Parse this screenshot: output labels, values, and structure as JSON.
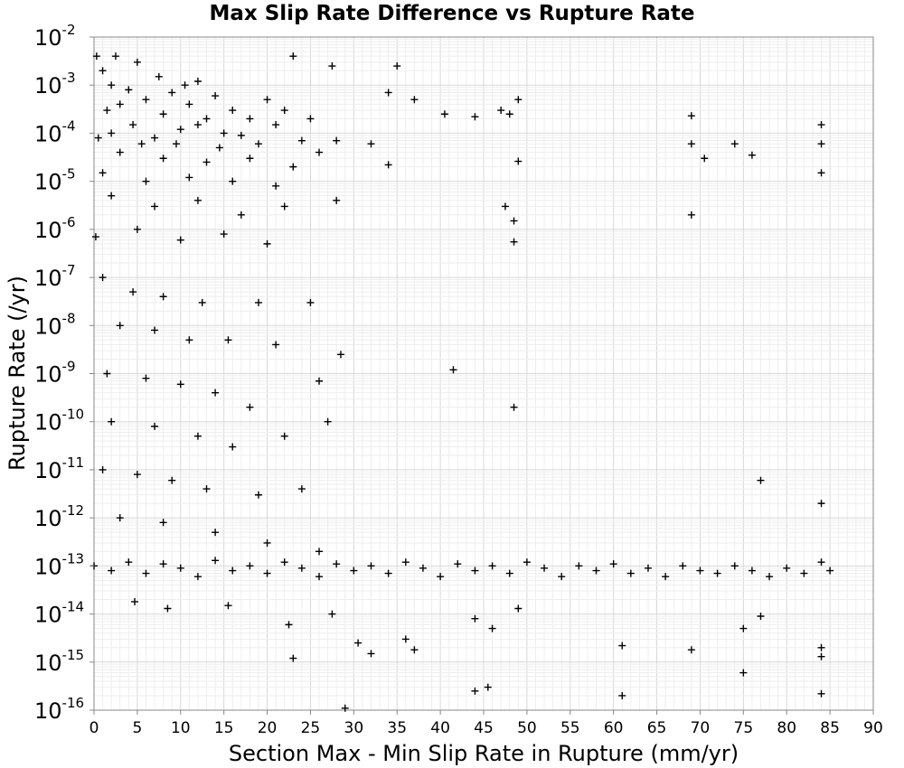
{
  "chart_data": {
    "type": "scatter",
    "title": "Max Slip Rate Difference vs Rupture Rate",
    "xlabel": "Section Max - Min Slip Rate in Rupture (mm/yr)",
    "ylabel": "Rupture Rate (/yr)",
    "x_scale": "linear",
    "y_scale": "log",
    "xlim": [
      0,
      90
    ],
    "ylim": [
      1e-16,
      0.01
    ],
    "x_ticks": [
      "0",
      "5",
      "10",
      "15",
      "20",
      "25",
      "30",
      "35",
      "40",
      "45",
      "50",
      "55",
      "60",
      "65",
      "70",
      "75",
      "80",
      "85",
      "90"
    ],
    "y_tick_bases": [
      "10",
      "10",
      "10",
      "10",
      "10",
      "10",
      "10",
      "10",
      "10",
      "10",
      "10",
      "10",
      "10",
      "10",
      "10"
    ],
    "y_tick_exponents": [
      "-16",
      "-15",
      "-14",
      "-13",
      "-12",
      "-11",
      "-10",
      "-9",
      "-8",
      "-7",
      "-6",
      "-5",
      "-4",
      "-3",
      "-2"
    ],
    "grid": true,
    "marker": "+",
    "marker_color": "#000000",
    "series": [
      {
        "points": [
          [
            0.3,
            0.004
          ],
          [
            2.5,
            0.004
          ],
          [
            5,
            0.003
          ],
          [
            23,
            0.004
          ],
          [
            27.5,
            0.0025
          ],
          [
            35,
            0.0025
          ],
          [
            1,
            0.002
          ],
          [
            7.5,
            0.0015
          ],
          [
            10.5,
            0.001
          ],
          [
            12,
            0.0012
          ],
          [
            2,
            0.001
          ],
          [
            4,
            0.0008
          ],
          [
            9,
            0.0007
          ],
          [
            14,
            0.0006
          ],
          [
            20,
            0.0005
          ],
          [
            34,
            0.0007
          ],
          [
            37,
            0.0005
          ],
          [
            49,
            0.0005
          ],
          [
            3,
            0.0004
          ],
          [
            6,
            0.0005
          ],
          [
            11,
            0.0004
          ],
          [
            16,
            0.0003
          ],
          [
            22,
            0.0003
          ],
          [
            1.5,
            0.0003
          ],
          [
            8,
            0.00025
          ],
          [
            13,
            0.0002
          ],
          [
            18,
            0.0002
          ],
          [
            25,
            0.0002
          ],
          [
            48,
            0.00025
          ],
          [
            44,
            0.00022
          ],
          [
            40.5,
            0.00025
          ],
          [
            47,
            0.0003
          ],
          [
            69,
            0.00023
          ],
          [
            4.5,
            0.00015
          ],
          [
            10,
            0.00012
          ],
          [
            15,
            0.0001
          ],
          [
            21,
            0.00015
          ],
          [
            2,
            0.0001
          ],
          [
            7,
            8e-05
          ],
          [
            12,
            0.00015
          ],
          [
            17,
            9e-05
          ],
          [
            24,
            7e-05
          ],
          [
            28,
            7e-05
          ],
          [
            32,
            6e-05
          ],
          [
            84,
            0.00015
          ],
          [
            0.5,
            8e-05
          ],
          [
            5.5,
            6e-05
          ],
          [
            9.5,
            6e-05
          ],
          [
            14.5,
            5e-05
          ],
          [
            19,
            6e-05
          ],
          [
            26,
            4e-05
          ],
          [
            84,
            6e-05
          ],
          [
            69,
            6e-05
          ],
          [
            74,
            6e-05
          ],
          [
            76,
            3.5e-05
          ],
          [
            70.5,
            3e-05
          ],
          [
            49,
            2.6e-05
          ],
          [
            3,
            4e-05
          ],
          [
            8,
            3e-05
          ],
          [
            13,
            2.5e-05
          ],
          [
            18,
            3e-05
          ],
          [
            23,
            2e-05
          ],
          [
            34,
            2.2e-05
          ],
          [
            84,
            1.5e-05
          ],
          [
            1,
            1.5e-05
          ],
          [
            6,
            1e-05
          ],
          [
            11,
            1.2e-05
          ],
          [
            16,
            1e-05
          ],
          [
            21,
            8e-06
          ],
          [
            2,
            5e-06
          ],
          [
            7,
            3e-06
          ],
          [
            12,
            4e-06
          ],
          [
            17,
            2e-06
          ],
          [
            22,
            3e-06
          ],
          [
            28,
            4e-06
          ],
          [
            47.5,
            3e-06
          ],
          [
            48.5,
            1.5e-06
          ],
          [
            69,
            2e-06
          ],
          [
            0.2,
            7e-07
          ],
          [
            5,
            1e-06
          ],
          [
            10,
            6e-07
          ],
          [
            15,
            8e-07
          ],
          [
            20,
            5e-07
          ],
          [
            48.5,
            5.5e-07
          ],
          [
            1,
            1e-07
          ],
          [
            4.5,
            5e-08
          ],
          [
            8,
            4e-08
          ],
          [
            12.5,
            3e-08
          ],
          [
            19,
            3e-08
          ],
          [
            25,
            3e-08
          ],
          [
            3,
            1e-08
          ],
          [
            7,
            8e-09
          ],
          [
            11,
            5e-09
          ],
          [
            15.5,
            5e-09
          ],
          [
            21,
            4e-09
          ],
          [
            28.5,
            2.5e-09
          ],
          [
            1.5,
            1e-09
          ],
          [
            6,
            8e-10
          ],
          [
            10,
            6e-10
          ],
          [
            14,
            4e-10
          ],
          [
            18,
            2e-10
          ],
          [
            26,
            7e-10
          ],
          [
            41.5,
            1.2e-09
          ],
          [
            48.5,
            2e-10
          ],
          [
            2,
            1e-10
          ],
          [
            7,
            8e-11
          ],
          [
            12,
            5e-11
          ],
          [
            16,
            3e-11
          ],
          [
            22,
            5e-11
          ],
          [
            27,
            1e-10
          ],
          [
            1,
            1e-11
          ],
          [
            5,
            8e-12
          ],
          [
            9,
            6e-12
          ],
          [
            13,
            4e-12
          ],
          [
            19,
            3e-12
          ],
          [
            24,
            4e-12
          ],
          [
            3,
            1e-12
          ],
          [
            8,
            8e-13
          ],
          [
            14,
            5e-13
          ],
          [
            20,
            3e-13
          ],
          [
            26,
            2e-13
          ],
          [
            77,
            6e-12
          ],
          [
            84,
            2e-12
          ],
          [
            0,
            1e-13
          ],
          [
            2,
            8e-14
          ],
          [
            4,
            1.2e-13
          ],
          [
            6,
            7e-14
          ],
          [
            8,
            1.1e-13
          ],
          [
            10,
            9e-14
          ],
          [
            12,
            6e-14
          ],
          [
            14,
            1.3e-13
          ],
          [
            16,
            8e-14
          ],
          [
            18,
            1e-13
          ],
          [
            20,
            7e-14
          ],
          [
            22,
            1.2e-13
          ],
          [
            24,
            9e-14
          ],
          [
            26,
            6e-14
          ],
          [
            28,
            1.1e-13
          ],
          [
            30,
            8e-14
          ],
          [
            32,
            1e-13
          ],
          [
            34,
            7e-14
          ],
          [
            36,
            1.2e-13
          ],
          [
            38,
            9e-14
          ],
          [
            40,
            6e-14
          ],
          [
            42,
            1.1e-13
          ],
          [
            44,
            8e-14
          ],
          [
            46,
            1e-13
          ],
          [
            48,
            7e-14
          ],
          [
            50,
            1.2e-13
          ],
          [
            52,
            9e-14
          ],
          [
            54,
            6e-14
          ],
          [
            56,
            1e-13
          ],
          [
            58,
            8e-14
          ],
          [
            60,
            1.1e-13
          ],
          [
            62,
            7e-14
          ],
          [
            64,
            9e-14
          ],
          [
            66,
            6e-14
          ],
          [
            68,
            1e-13
          ],
          [
            70,
            8e-14
          ],
          [
            72,
            7e-14
          ],
          [
            74,
            1e-13
          ],
          [
            76,
            8e-14
          ],
          [
            78,
            6e-14
          ],
          [
            80,
            9e-14
          ],
          [
            82,
            7e-14
          ],
          [
            84,
            1.2e-13
          ],
          [
            85,
            8e-14
          ],
          [
            4.7,
            1.8e-14
          ],
          [
            8.5,
            1.3e-14
          ],
          [
            15.5,
            1.5e-14
          ],
          [
            22.5,
            6e-15
          ],
          [
            23,
            1.2e-15
          ],
          [
            27.5,
            1e-14
          ],
          [
            30.5,
            2.5e-15
          ],
          [
            32,
            1.5e-15
          ],
          [
            36,
            3e-15
          ],
          [
            37,
            1.8e-15
          ],
          [
            44,
            8e-15
          ],
          [
            46,
            5e-15
          ],
          [
            49,
            1.3e-14
          ],
          [
            61,
            2.2e-15
          ],
          [
            69,
            1.8e-15
          ],
          [
            75,
            5e-15
          ],
          [
            77,
            9e-15
          ],
          [
            84,
            2e-15
          ],
          [
            75,
            6e-16
          ],
          [
            84,
            1.3e-15
          ],
          [
            44,
            2.5e-16
          ],
          [
            45.5,
            3e-16
          ],
          [
            61,
            2e-16
          ],
          [
            84,
            2.2e-16
          ],
          [
            29,
            1.1e-16
          ]
        ]
      }
    ]
  }
}
